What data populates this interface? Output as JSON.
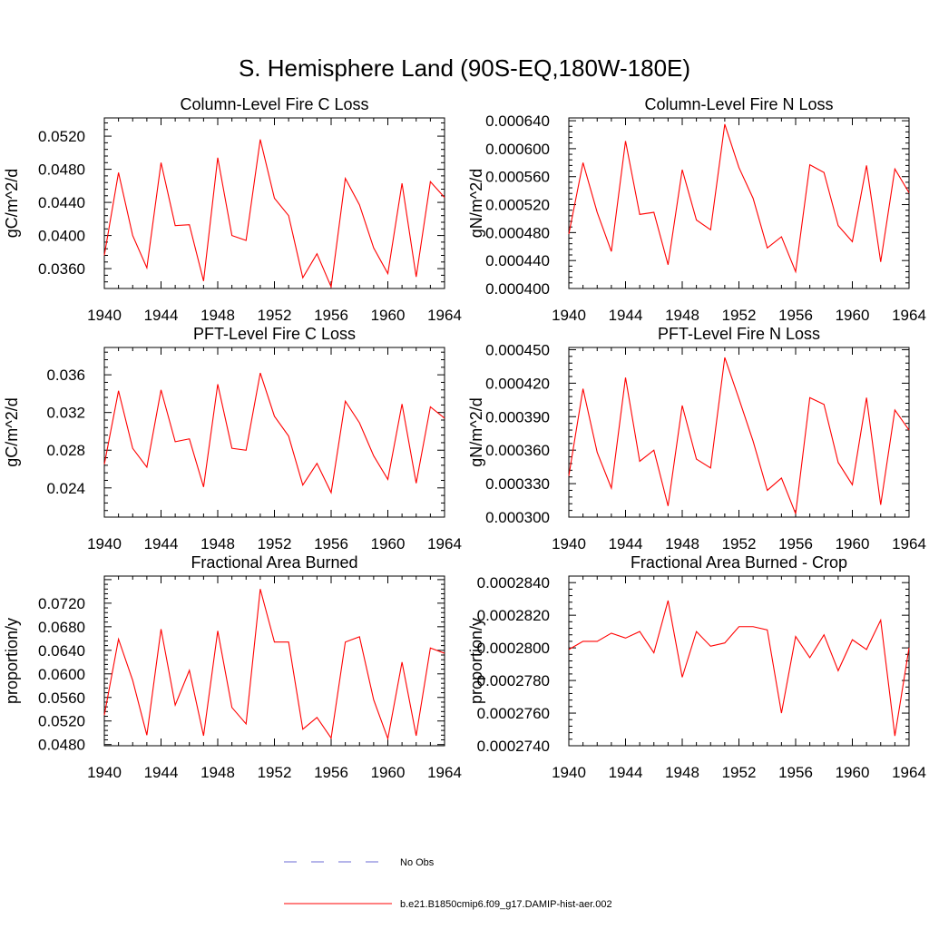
{
  "title": "S. Hemisphere Land (90S-EQ,180W-180E)",
  "legend": {
    "items": [
      {
        "label": "No Obs",
        "color": "#6b6bd6",
        "style": "dashed"
      },
      {
        "label": "b.e21.B1850cmip6.f09_g17.DAMIP-hist-aer.002",
        "color": "#ff0000",
        "style": "solid"
      }
    ]
  },
  "chart_data": [
    {
      "type": "line",
      "title": "Column-Level Fire C Loss",
      "ylabel": "gC/m^2/d",
      "xlim": [
        1940,
        1964
      ],
      "ylim": [
        0.0336,
        0.0542
      ],
      "xticks": [
        1940,
        1944,
        1948,
        1952,
        1956,
        1960,
        1964
      ],
      "xtick_labels": [
        "1940",
        "1944",
        "1948",
        "1952",
        "1956",
        "1960",
        "1964"
      ],
      "yticks": [
        0.036,
        0.04,
        0.044,
        0.048,
        0.052
      ],
      "ytick_labels": [
        "0.0360",
        "0.0400",
        "0.0440",
        "0.0480",
        "0.0520"
      ],
      "series": [
        {
          "name": "b.e21.B1850cmip6.f09_g17.DAMIP-hist-aer.002",
          "color": "#ff0000",
          "x": [
            1940,
            1941,
            1942,
            1943,
            1944,
            1945,
            1946,
            1947,
            1948,
            1949,
            1950,
            1951,
            1952,
            1953,
            1954,
            1955,
            1956,
            1957,
            1958,
            1959,
            1960,
            1961,
            1962,
            1963,
            1964
          ],
          "y": [
            0.0376,
            0.0476,
            0.04,
            0.0361,
            0.0488,
            0.0412,
            0.0413,
            0.0345,
            0.0494,
            0.04,
            0.0394,
            0.0516,
            0.0445,
            0.0424,
            0.0349,
            0.0378,
            0.0338,
            0.0469,
            0.0437,
            0.0385,
            0.0354,
            0.0463,
            0.035,
            0.0465,
            0.0446
          ]
        }
      ]
    },
    {
      "type": "line",
      "title": "Column-Level Fire N Loss",
      "ylabel": "gN/m^2/d",
      "xlim": [
        1940,
        1964
      ],
      "ylim": [
        0.0004,
        0.000644
      ],
      "xticks": [
        1940,
        1944,
        1948,
        1952,
        1956,
        1960,
        1964
      ],
      "xtick_labels": [
        "1940",
        "1944",
        "1948",
        "1952",
        "1956",
        "1960",
        "1964"
      ],
      "yticks": [
        0.0004,
        0.00044,
        0.00048,
        0.00052,
        0.00056,
        0.0006,
        0.00064
      ],
      "ytick_labels": [
        "0.000400",
        "0.000440",
        "0.000480",
        "0.000520",
        "0.000560",
        "0.000600",
        "0.000640"
      ],
      "series": [
        {
          "name": "b.e21.B1850cmip6.f09_g17.DAMIP-hist-aer.002",
          "color": "#ff0000",
          "x": [
            1940,
            1941,
            1942,
            1943,
            1944,
            1945,
            1946,
            1947,
            1948,
            1949,
            1950,
            1951,
            1952,
            1953,
            1954,
            1955,
            1956,
            1957,
            1958,
            1959,
            1960,
            1961,
            1962,
            1963,
            1964
          ],
          "y": [
            0.000478,
            0.00058,
            0.000509,
            0.000453,
            0.000611,
            0.000506,
            0.000509,
            0.000434,
            0.00057,
            0.000498,
            0.000484,
            0.000635,
            0.000573,
            0.000529,
            0.000458,
            0.000474,
            0.000424,
            0.000577,
            0.000566,
            0.00049,
            0.000467,
            0.000576,
            0.000438,
            0.000571,
            0.000537
          ]
        }
      ]
    },
    {
      "type": "line",
      "title": "PFT-Level Fire C Loss",
      "ylabel": "gC/m^2/d",
      "xlim": [
        1940,
        1964
      ],
      "ylim": [
        0.0209,
        0.0389
      ],
      "xticks": [
        1940,
        1944,
        1948,
        1952,
        1956,
        1960,
        1964
      ],
      "xtick_labels": [
        "1940",
        "1944",
        "1948",
        "1952",
        "1956",
        "1960",
        "1964"
      ],
      "yticks": [
        0.024,
        0.028,
        0.032,
        0.036
      ],
      "ytick_labels": [
        "0.024",
        "0.028",
        "0.032",
        "0.036"
      ],
      "series": [
        {
          "name": "b.e21.B1850cmip6.f09_g17.DAMIP-hist-aer.002",
          "color": "#ff0000",
          "x": [
            1940,
            1941,
            1942,
            1943,
            1944,
            1945,
            1946,
            1947,
            1948,
            1949,
            1950,
            1951,
            1952,
            1953,
            1954,
            1955,
            1956,
            1957,
            1958,
            1959,
            1960,
            1961,
            1962,
            1963,
            1964
          ],
          "y": [
            0.0265,
            0.0343,
            0.0282,
            0.0262,
            0.0344,
            0.0289,
            0.0292,
            0.0241,
            0.035,
            0.0282,
            0.028,
            0.0362,
            0.0316,
            0.0295,
            0.0243,
            0.0266,
            0.0235,
            0.0332,
            0.0309,
            0.0274,
            0.0249,
            0.0329,
            0.0245,
            0.0326,
            0.0314
          ]
        }
      ]
    },
    {
      "type": "line",
      "title": "PFT-Level Fire N Loss",
      "ylabel": "gN/m^2/d",
      "xlim": [
        1940,
        1964
      ],
      "ylim": [
        0.0003,
        0.000452
      ],
      "xticks": [
        1940,
        1944,
        1948,
        1952,
        1956,
        1960,
        1964
      ],
      "xtick_labels": [
        "1940",
        "1944",
        "1948",
        "1952",
        "1956",
        "1960",
        "1964"
      ],
      "yticks": [
        0.0003,
        0.00033,
        0.00036,
        0.00039,
        0.00042,
        0.00045
      ],
      "ytick_labels": [
        "0.000300",
        "0.000330",
        "0.000360",
        "0.000390",
        "0.000420",
        "0.000450"
      ],
      "series": [
        {
          "name": "b.e21.B1850cmip6.f09_g17.DAMIP-hist-aer.002",
          "color": "#ff0000",
          "x": [
            1940,
            1941,
            1942,
            1943,
            1944,
            1945,
            1946,
            1947,
            1948,
            1949,
            1950,
            1951,
            1952,
            1953,
            1954,
            1955,
            1956,
            1957,
            1958,
            1959,
            1960,
            1961,
            1962,
            1963,
            1964
          ],
          "y": [
            0.000337,
            0.000415,
            0.000358,
            0.000326,
            0.000425,
            0.00035,
            0.00036,
            0.00031,
            0.0004,
            0.000352,
            0.000344,
            0.000443,
            0.000406,
            0.000368,
            0.000324,
            0.000335,
            0.000303,
            0.000407,
            0.000401,
            0.000349,
            0.000329,
            0.000407,
            0.000311,
            0.000396,
            0.000378
          ]
        }
      ]
    },
    {
      "type": "line",
      "title": "Fractional Area Burned",
      "ylabel": "proportion/y",
      "xlim": [
        1940,
        1964
      ],
      "ylim": [
        0.0478,
        0.0766
      ],
      "xticks": [
        1940,
        1944,
        1948,
        1952,
        1956,
        1960,
        1964
      ],
      "xtick_labels": [
        "1940",
        "1944",
        "1948",
        "1952",
        "1956",
        "1960",
        "1964"
      ],
      "yticks": [
        0.048,
        0.052,
        0.056,
        0.06,
        0.064,
        0.068,
        0.072
      ],
      "ytick_labels": [
        "0.0480",
        "0.0520",
        "0.0560",
        "0.0600",
        "0.0640",
        "0.0680",
        "0.0720"
      ],
      "series": [
        {
          "name": "b.e21.B1850cmip6.f09_g17.DAMIP-hist-aer.002",
          "color": "#ff0000",
          "x": [
            1940,
            1941,
            1942,
            1943,
            1944,
            1945,
            1946,
            1947,
            1948,
            1949,
            1950,
            1951,
            1952,
            1953,
            1954,
            1955,
            1956,
            1957,
            1958,
            1959,
            1960,
            1961,
            1962,
            1963,
            1964
          ],
          "y": [
            0.053,
            0.0659,
            0.0589,
            0.0496,
            0.0676,
            0.0547,
            0.0606,
            0.0495,
            0.0673,
            0.0543,
            0.0515,
            0.0744,
            0.0654,
            0.0654,
            0.0506,
            0.0526,
            0.0491,
            0.0654,
            0.0663,
            0.0556,
            0.049,
            0.062,
            0.0495,
            0.0644,
            0.0635
          ]
        }
      ]
    },
    {
      "type": "line",
      "title": "Fractional Area Burned - Crop",
      "ylabel": "proportion/y",
      "xlim": [
        1940,
        1964
      ],
      "ylim": [
        0.000274,
        0.0002844
      ],
      "xticks": [
        1940,
        1944,
        1948,
        1952,
        1956,
        1960,
        1964
      ],
      "xtick_labels": [
        "1940",
        "1944",
        "1948",
        "1952",
        "1956",
        "1960",
        "1964"
      ],
      "yticks": [
        0.000274,
        0.000276,
        0.000278,
        0.00028,
        0.000282,
        0.000284
      ],
      "ytick_labels": [
        "0.0002740",
        "0.0002760",
        "0.0002780",
        "0.0002800",
        "0.0002820",
        "0.0002840"
      ],
      "series": [
        {
          "name": "b.e21.B1850cmip6.f09_g17.DAMIP-hist-aer.002",
          "color": "#ff0000",
          "x": [
            1940,
            1941,
            1942,
            1943,
            1944,
            1945,
            1946,
            1947,
            1948,
            1949,
            1950,
            1951,
            1952,
            1953,
            1954,
            1955,
            1956,
            1957,
            1958,
            1959,
            1960,
            1961,
            1962,
            1963,
            1964
          ],
          "y": [
            0.0002799,
            0.0002804,
            0.0002804,
            0.0002809,
            0.0002806,
            0.000281,
            0.0002797,
            0.0002829,
            0.0002782,
            0.000281,
            0.0002801,
            0.0002803,
            0.0002813,
            0.0002813,
            0.0002811,
            0.000276,
            0.0002807,
            0.0002794,
            0.0002808,
            0.0002786,
            0.0002805,
            0.0002799,
            0.0002817,
            0.0002746,
            0.00028
          ]
        }
      ]
    }
  ]
}
